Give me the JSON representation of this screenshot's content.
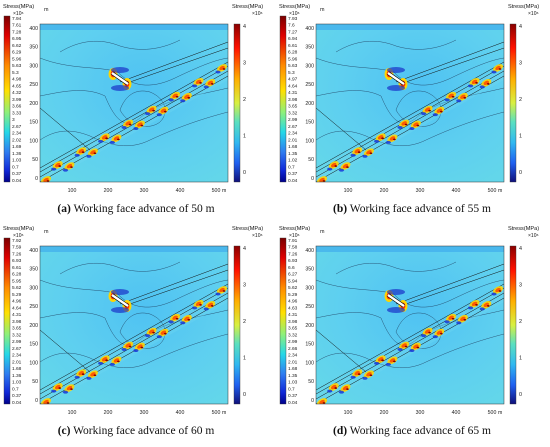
{
  "figure": {
    "panels": [
      {
        "caption_letter": "(a)",
        "caption_text": " Working face advance of 50 m",
        "left_colorbar": {
          "title": "Stress(MPa)",
          "multiplier": "×10⁶",
          "ticks": [
            "7.94",
            "7.61",
            "7.28",
            "6.95",
            "6.62",
            "6.29",
            "5.96",
            "5.63",
            "5.3",
            "4.98",
            "4.65",
            "4.32",
            "3.99",
            "3.66",
            "3.33",
            "3",
            "2.67",
            "2.34",
            "2.02",
            "1.69",
            "1.36",
            "1.03",
            "0.7",
            "0.37",
            "0.04"
          ]
        },
        "right_colorbar": {
          "title": "Stress(MPa)",
          "multiplier": "×10⁶",
          "ticks": [
            "4",
            "3",
            "2",
            "1",
            "0"
          ]
        },
        "y_unit": "m",
        "x_unit": "m",
        "y_ticks": [
          "400",
          "350",
          "300",
          "250",
          "200",
          "150",
          "100",
          "50",
          "0"
        ],
        "x_ticks": [
          "100",
          "200",
          "300",
          "400",
          "500"
        ]
      },
      {
        "caption_letter": "(b)",
        "caption_text": " Working face advance of 55 m",
        "left_colorbar": {
          "title": "Stress(MPa)",
          "multiplier": "×10⁶",
          "ticks": [
            "7.93",
            "7.6",
            "7.27",
            "6.94",
            "6.61",
            "6.28",
            "5.96",
            "5.63",
            "5.3",
            "4.97",
            "4.64",
            "4.31",
            "3.98",
            "3.65",
            "3.32",
            "2.99",
            "2.67",
            "2.34",
            "2.01",
            "1.68",
            "1.35",
            "1.02",
            "0.7",
            "0.37",
            "0.04"
          ]
        },
        "right_colorbar": {
          "title": "Stress(MPa)",
          "multiplier": "×10⁶",
          "ticks": [
            "4",
            "3",
            "2",
            "1",
            "0"
          ]
        },
        "y_unit": "m",
        "x_unit": "m",
        "y_ticks": [
          "400",
          "350",
          "300",
          "250",
          "200",
          "150",
          "100",
          "50",
          "0"
        ],
        "x_ticks": [
          "100",
          "200",
          "300",
          "400",
          "500"
        ]
      },
      {
        "caption_letter": "(c)",
        "caption_text": " Working face advance of 60 m",
        "left_colorbar": {
          "title": "Stress(MPa)",
          "multiplier": "×10⁶",
          "ticks": [
            "7.92",
            "7.59",
            "7.26",
            "6.93",
            "6.61",
            "6.28",
            "5.95",
            "5.62",
            "5.29",
            "4.96",
            "4.64",
            "4.31",
            "3.98",
            "3.65",
            "3.32",
            "2.99",
            "2.67",
            "2.34",
            "2.01",
            "1.68",
            "1.36",
            "1.03",
            "0.7",
            "0.37",
            "0.04"
          ]
        },
        "right_colorbar": {
          "title": "Stress(MPa)",
          "multiplier": "×10⁶",
          "ticks": [
            "4",
            "3",
            "2",
            "1",
            "0"
          ]
        },
        "y_unit": "m",
        "x_unit": "m",
        "y_ticks": [
          "400",
          "350",
          "300",
          "250",
          "200",
          "150",
          "100",
          "50",
          "0"
        ],
        "x_ticks": [
          "100",
          "200",
          "300",
          "400",
          "500"
        ]
      },
      {
        "caption_letter": "(d)",
        "caption_text": " Working face advance of 65 m",
        "left_colorbar": {
          "title": "Stress(MPa)",
          "multiplier": "×10⁶",
          "ticks": [
            "7.91",
            "7.58",
            "7.26",
            "6.93",
            "6.6",
            "6.27",
            "5.94",
            "5.62",
            "5.29",
            "4.96",
            "4.63",
            "4.31",
            "3.98",
            "3.65",
            "3.32",
            "2.99",
            "2.66",
            "2.34",
            "2.01",
            "1.68",
            "1.35",
            "1.03",
            "0.7",
            "0.37",
            "0.04"
          ]
        },
        "right_colorbar": {
          "title": "Stress(MPa)",
          "multiplier": "×10⁶",
          "ticks": [
            "4",
            "3",
            "2",
            "1",
            "0"
          ]
        },
        "y_unit": "m",
        "x_unit": "m",
        "y_ticks": [
          "400",
          "350",
          "300",
          "250",
          "200",
          "150",
          "100",
          "50",
          "0"
        ],
        "x_ticks": [
          "100",
          "200",
          "300",
          "400",
          "500"
        ]
      }
    ],
    "colors": {
      "background_field": "#5ecff0",
      "left_bar_top": "#7a0000",
      "left_bar_bottom": "#00008a",
      "caption": "#111111"
    }
  }
}
